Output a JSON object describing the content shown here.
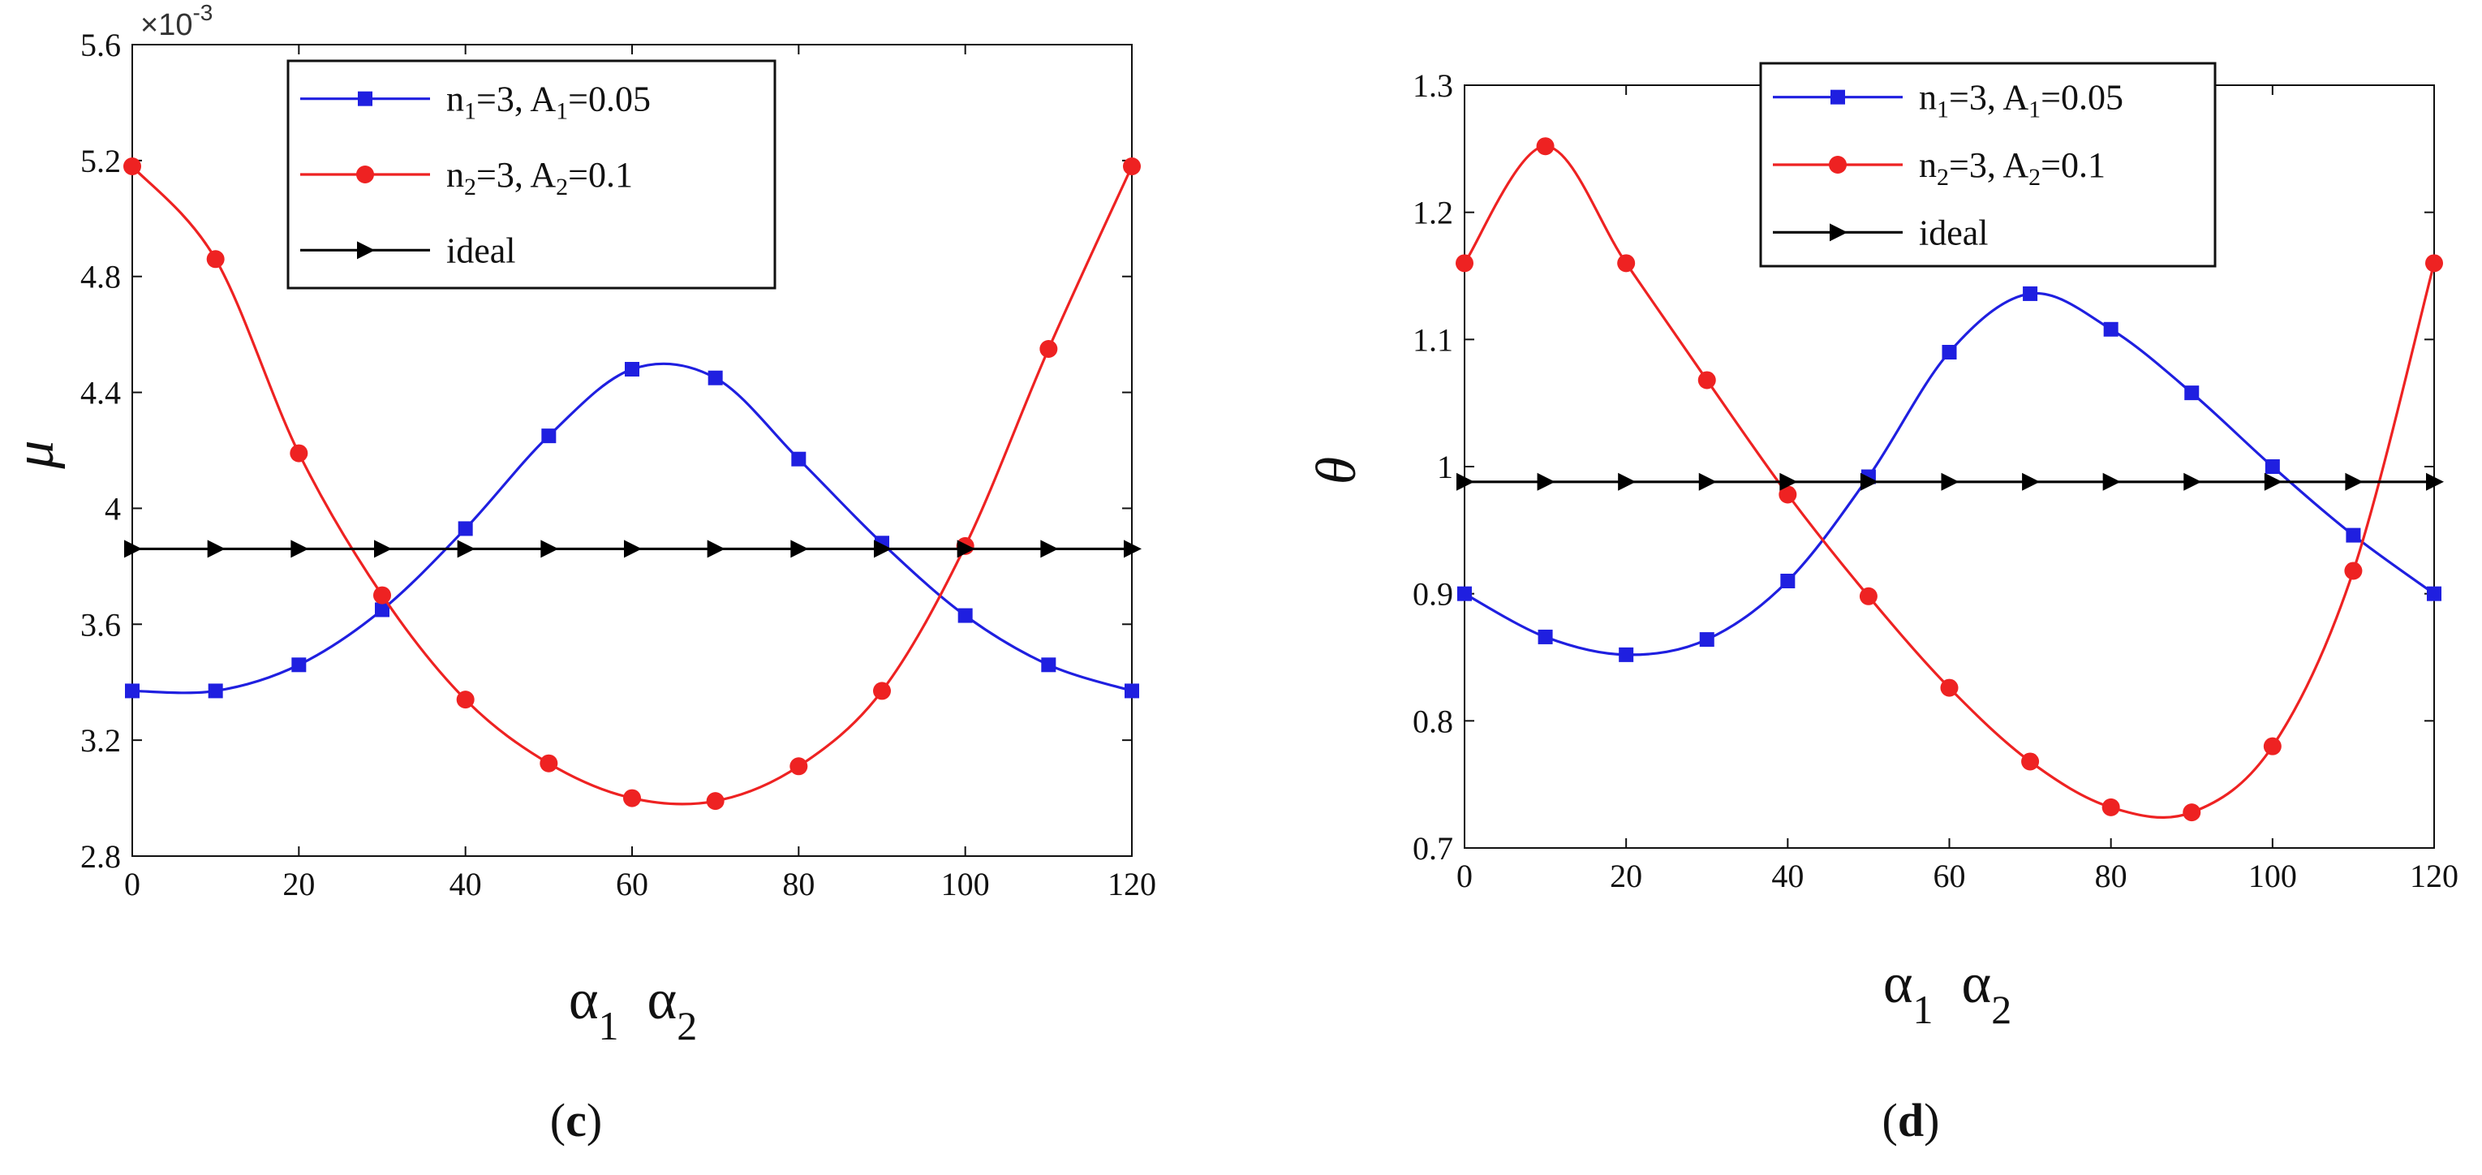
{
  "chart_data": [
    {
      "type": "line",
      "panel": "c",
      "caption": "(c)",
      "caption_letter": "c",
      "ylabel": "μ",
      "xlabel_parts": [
        "α",
        "1",
        "α",
        "2"
      ],
      "sci_multiplier": "×10",
      "sci_exponent": "-3",
      "xlim": [
        0,
        120
      ],
      "ylim": [
        2.8,
        5.6
      ],
      "xticks": [
        0,
        20,
        40,
        60,
        80,
        100,
        120
      ],
      "xtick_labels": [
        "0",
        "20",
        "40",
        "60",
        "80",
        "100",
        "120"
      ],
      "yticks": [
        2.8,
        3.2,
        3.6,
        4.0,
        4.4,
        4.8,
        5.2,
        5.6
      ],
      "ytick_labels": [
        "2.8",
        "3.2",
        "3.6",
        "4",
        "4.4",
        "4.8",
        "5.2",
        "5.6"
      ],
      "legend_position": "top-center",
      "x": [
        0,
        10,
        20,
        30,
        40,
        50,
        60,
        70,
        80,
        90,
        100,
        110,
        120
      ],
      "series": [
        {
          "name": "n1=3, A1=0.05",
          "label_parts": [
            "n",
            "1",
            "=3, A",
            "1",
            "=0.05"
          ],
          "color": "#1f1fe0",
          "marker": "square",
          "values": [
            3.37,
            3.37,
            3.46,
            3.65,
            3.93,
            4.25,
            4.48,
            4.45,
            4.17,
            3.88,
            3.63,
            3.46,
            3.37
          ]
        },
        {
          "name": "n2=3, A2=0.1",
          "label_parts": [
            "n",
            "2",
            "=3, A",
            "2",
            "=0.1"
          ],
          "color": "#ee2222",
          "marker": "circle",
          "values": [
            5.18,
            4.86,
            4.19,
            3.7,
            3.34,
            3.12,
            3.0,
            2.99,
            3.11,
            3.37,
            3.87,
            4.55,
            5.18
          ]
        },
        {
          "name": "ideal",
          "label_parts": [
            "ideal"
          ],
          "color": "#000000",
          "marker": "triangle-right",
          "values": [
            3.86,
            3.86,
            3.86,
            3.86,
            3.86,
            3.86,
            3.86,
            3.86,
            3.86,
            3.86,
            3.86,
            3.86,
            3.86
          ]
        }
      ]
    },
    {
      "type": "line",
      "panel": "d",
      "caption": "(d)",
      "caption_letter": "d",
      "ylabel": "θ",
      "xlabel_parts": [
        "α",
        "1",
        "α",
        "2"
      ],
      "xlim": [
        0,
        120
      ],
      "ylim": [
        0.7,
        1.3
      ],
      "xticks": [
        0,
        20,
        40,
        60,
        80,
        100,
        120
      ],
      "xtick_labels": [
        "0",
        "20",
        "40",
        "60",
        "80",
        "100",
        "120"
      ],
      "yticks": [
        0.7,
        0.8,
        0.9,
        1.0,
        1.1,
        1.2,
        1.3
      ],
      "ytick_labels": [
        "0.7",
        "0.8",
        "0.9",
        "1",
        "1.1",
        "1.2",
        "1.3"
      ],
      "legend_position": "top-center",
      "x": [
        0,
        10,
        20,
        30,
        40,
        50,
        60,
        70,
        80,
        90,
        100,
        110,
        120
      ],
      "series": [
        {
          "name": "n1=3, A1=0.05",
          "label_parts": [
            "n",
            "1",
            "=3, A",
            "1",
            "=0.05"
          ],
          "color": "#1f1fe0",
          "marker": "square",
          "values": [
            0.9,
            0.866,
            0.852,
            0.864,
            0.91,
            0.992,
            1.09,
            1.136,
            1.108,
            1.058,
            1.0,
            0.946,
            0.9
          ]
        },
        {
          "name": "n2=3, A2=0.1",
          "label_parts": [
            "n",
            "2",
            "=3, A",
            "2",
            "=0.1"
          ],
          "color": "#ee2222",
          "marker": "circle",
          "values": [
            1.16,
            1.252,
            1.16,
            1.068,
            0.978,
            0.898,
            0.826,
            0.768,
            0.732,
            0.728,
            0.78,
            0.918,
            1.16
          ]
        },
        {
          "name": "ideal",
          "label_parts": [
            "ideal"
          ],
          "color": "#000000",
          "marker": "triangle-right",
          "values": [
            0.988,
            0.988,
            0.988,
            0.988,
            0.988,
            0.988,
            0.988,
            0.988,
            0.988,
            0.988,
            0.988,
            0.988,
            0.988
          ]
        }
      ]
    }
  ]
}
